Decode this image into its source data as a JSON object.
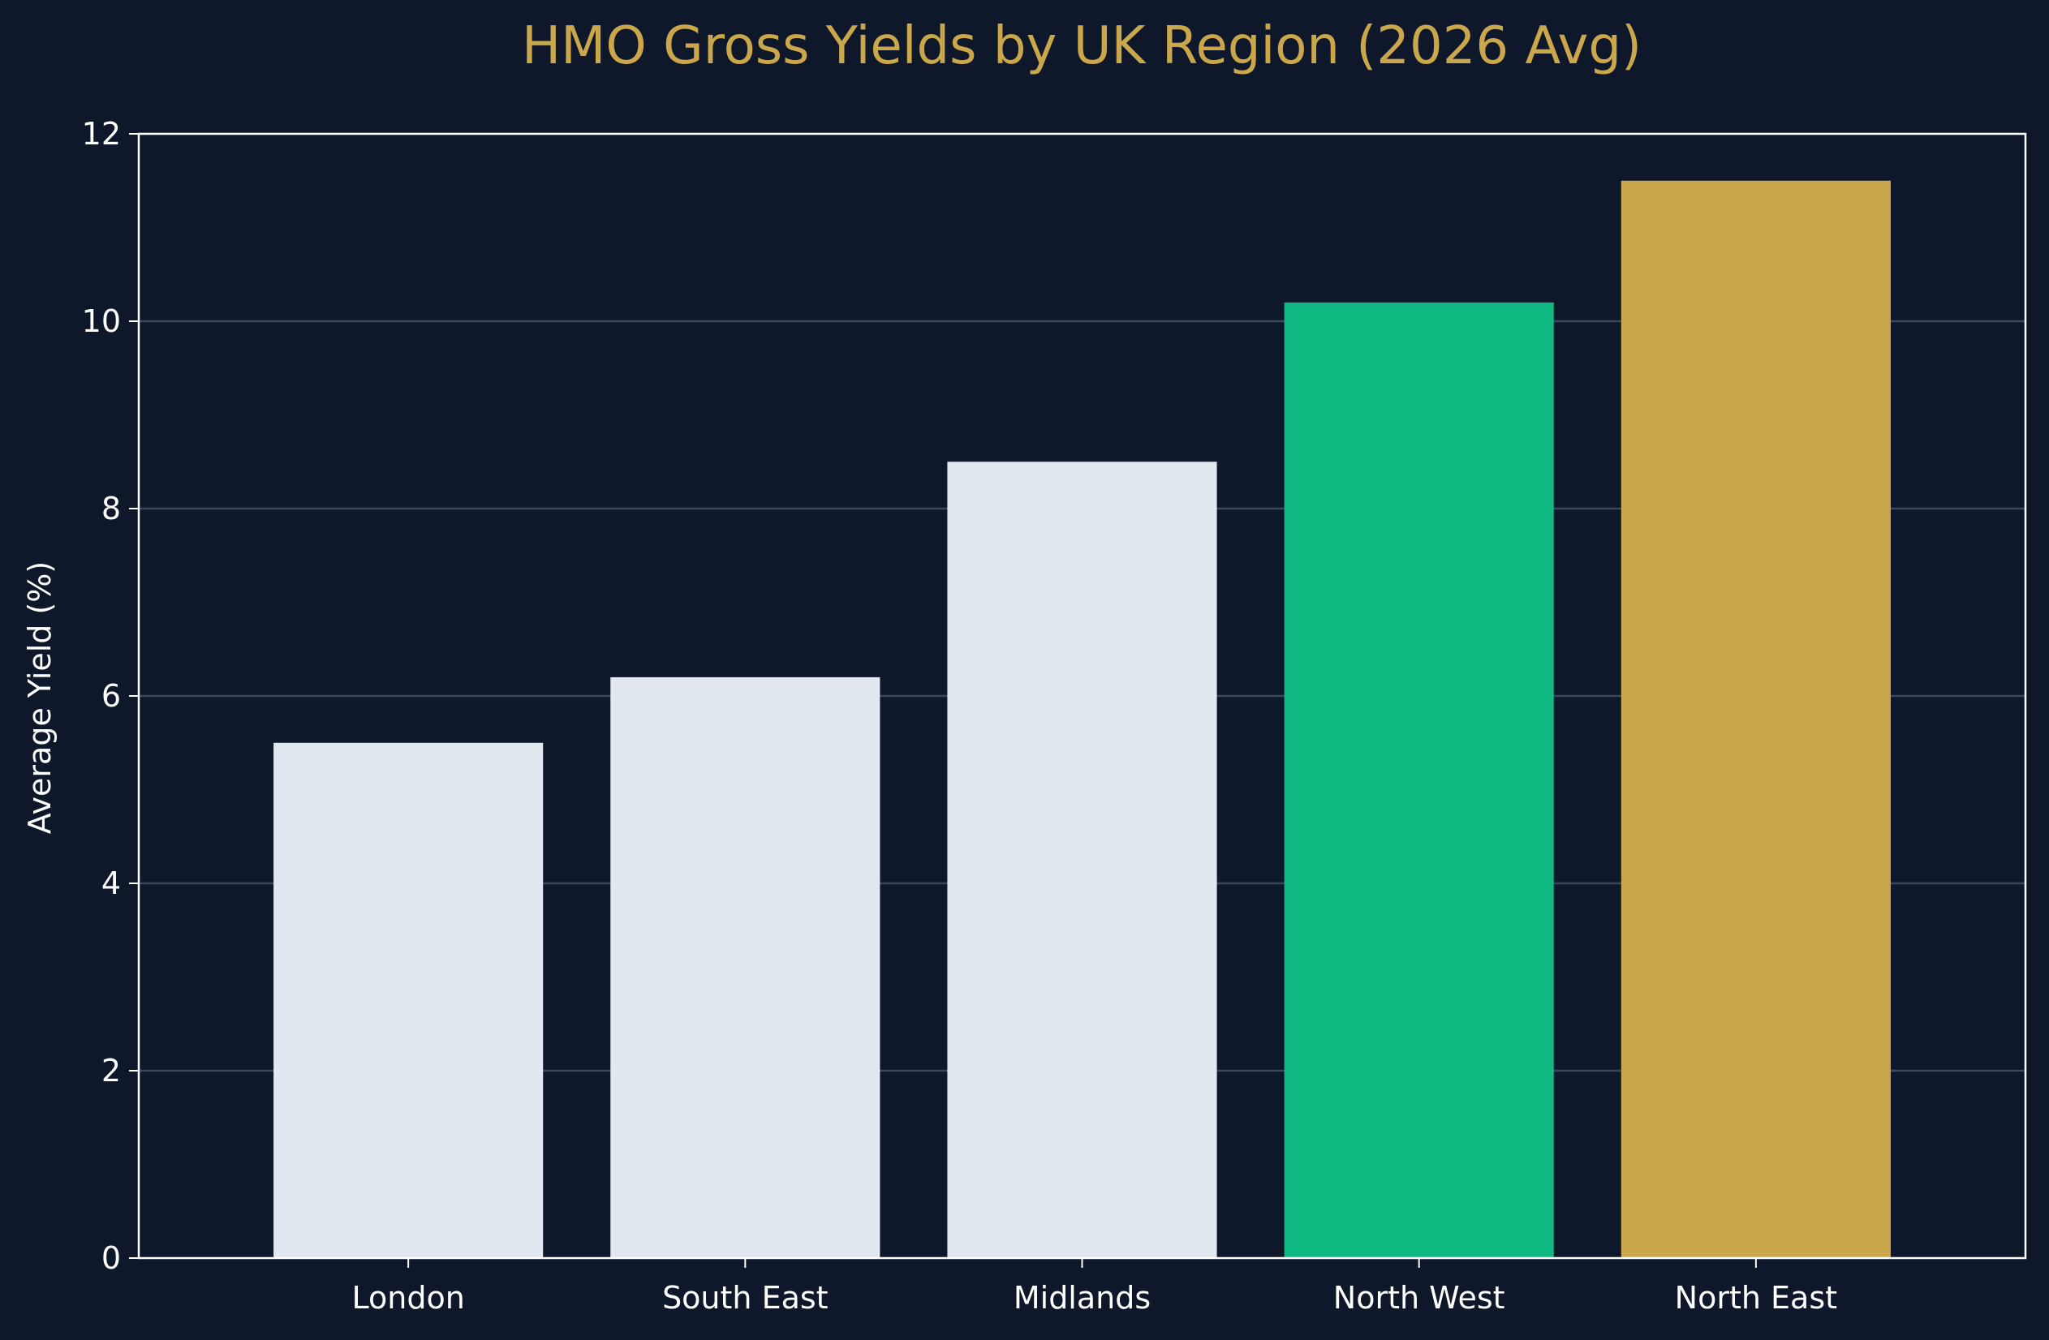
{
  "chart_data": {
    "type": "bar",
    "title": "HMO Gross Yields by UK Region (2026 Avg)",
    "xlabel": "",
    "ylabel": "Average Yield (%)",
    "categories": [
      "London",
      "South East",
      "Midlands",
      "North West",
      "North East"
    ],
    "values": [
      5.5,
      6.2,
      8.5,
      10.2,
      11.5
    ],
    "bar_colors": [
      "#e2e8f0",
      "#e2e8f0",
      "#e2e8f0",
      "#10b981",
      "#c9a74a"
    ],
    "ylim": [
      0,
      12
    ],
    "yticks": [
      0,
      2,
      4,
      6,
      8,
      10,
      12
    ],
    "grid": "horizontal",
    "legend": "none"
  },
  "colors": {
    "background": "#0f172a",
    "title": "#c9a74a",
    "axis": "#ffffff",
    "grid": "#475569"
  }
}
